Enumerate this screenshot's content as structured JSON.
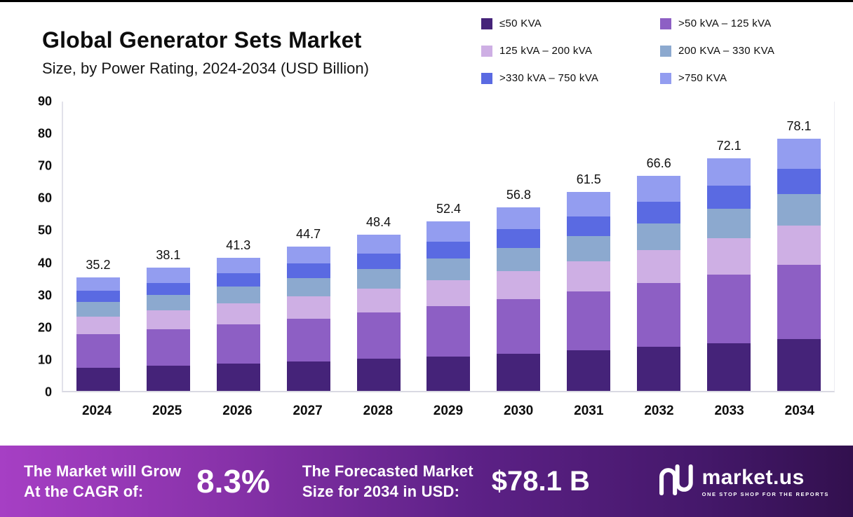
{
  "header": {
    "title": "Global Generator Sets Market",
    "subtitle": "Size, by  Power Rating, 2024-2034 (USD Billion)"
  },
  "legend": [
    {
      "label": "≤50 KVA",
      "color": "#452379"
    },
    {
      "label": ">50 kVA – 125 kVA",
      "color": "#8d5fc4"
    },
    {
      "label": "125 kVA – 200 kVA",
      "color": "#ceafe4"
    },
    {
      "label": "200 KVA – 330 KVA",
      "color": "#8ca9cf"
    },
    {
      "label": ">330 kVA – 750 kVA",
      "color": "#5a6ae2"
    },
    {
      "label": ">750 KVA",
      "color": "#939df0"
    }
  ],
  "chart_data": {
    "type": "bar",
    "stacked": true,
    "title": "Global Generator Sets Market Size, by Power Rating, 2024-2034 (USD Billion)",
    "xlabel": "",
    "ylabel": "USD Billion",
    "ylim": [
      0,
      90
    ],
    "yticks": [
      0,
      10,
      20,
      30,
      40,
      50,
      60,
      70,
      80,
      90
    ],
    "grid": false,
    "legend_position": "top-right",
    "categories": [
      "2024",
      "2025",
      "2026",
      "2027",
      "2028",
      "2029",
      "2030",
      "2031",
      "2032",
      "2033",
      "2034"
    ],
    "totals": [
      35.2,
      38.1,
      41.3,
      44.7,
      48.4,
      52.4,
      56.8,
      61.5,
      66.6,
      72.1,
      78.1
    ],
    "series": [
      {
        "name": "≤50 KVA",
        "color": "#452379",
        "values": [
          7.2,
          7.8,
          8.5,
          9.2,
          9.9,
          10.7,
          11.6,
          12.6,
          13.7,
          14.8,
          16.0
        ]
      },
      {
        "name": ">50 kVA – 125 kVA",
        "color": "#8d5fc4",
        "values": [
          10.4,
          11.2,
          12.2,
          13.2,
          14.3,
          15.5,
          16.8,
          18.1,
          19.6,
          21.3,
          23.0
        ]
      },
      {
        "name": "125 kVA – 200 kVA",
        "color": "#ceafe4",
        "values": [
          5.5,
          5.9,
          6.4,
          6.9,
          7.5,
          8.1,
          8.8,
          9.5,
          10.3,
          11.2,
          12.1
        ]
      },
      {
        "name": "200 KVA – 330 KVA",
        "color": "#8ca9cf",
        "values": [
          4.4,
          4.8,
          5.2,
          5.6,
          6.1,
          6.6,
          7.1,
          7.7,
          8.3,
          9.0,
          9.8
        ]
      },
      {
        "name": ">330 kVA – 750 kVA",
        "color": "#5a6ae2",
        "values": [
          3.5,
          3.8,
          4.1,
          4.5,
          4.8,
          5.2,
          5.7,
          6.2,
          6.7,
          7.2,
          7.8
        ]
      },
      {
        "name": ">750 KVA",
        "color": "#939df0",
        "values": [
          4.2,
          4.6,
          4.9,
          5.3,
          5.8,
          6.3,
          6.8,
          7.4,
          8.0,
          8.6,
          9.4
        ]
      }
    ]
  },
  "banner": {
    "cagr_label_line1": "The Market will Grow",
    "cagr_label_line2": "At the CAGR of:",
    "cagr_value": "8.3%",
    "forecast_label_line1": "The Forecasted Market",
    "forecast_label_line2": "Size for 2034 in USD:",
    "forecast_value": "$78.1 B",
    "brand_name": "market.us",
    "brand_tagline": "ONE STOP SHOP FOR THE REPORTS"
  }
}
